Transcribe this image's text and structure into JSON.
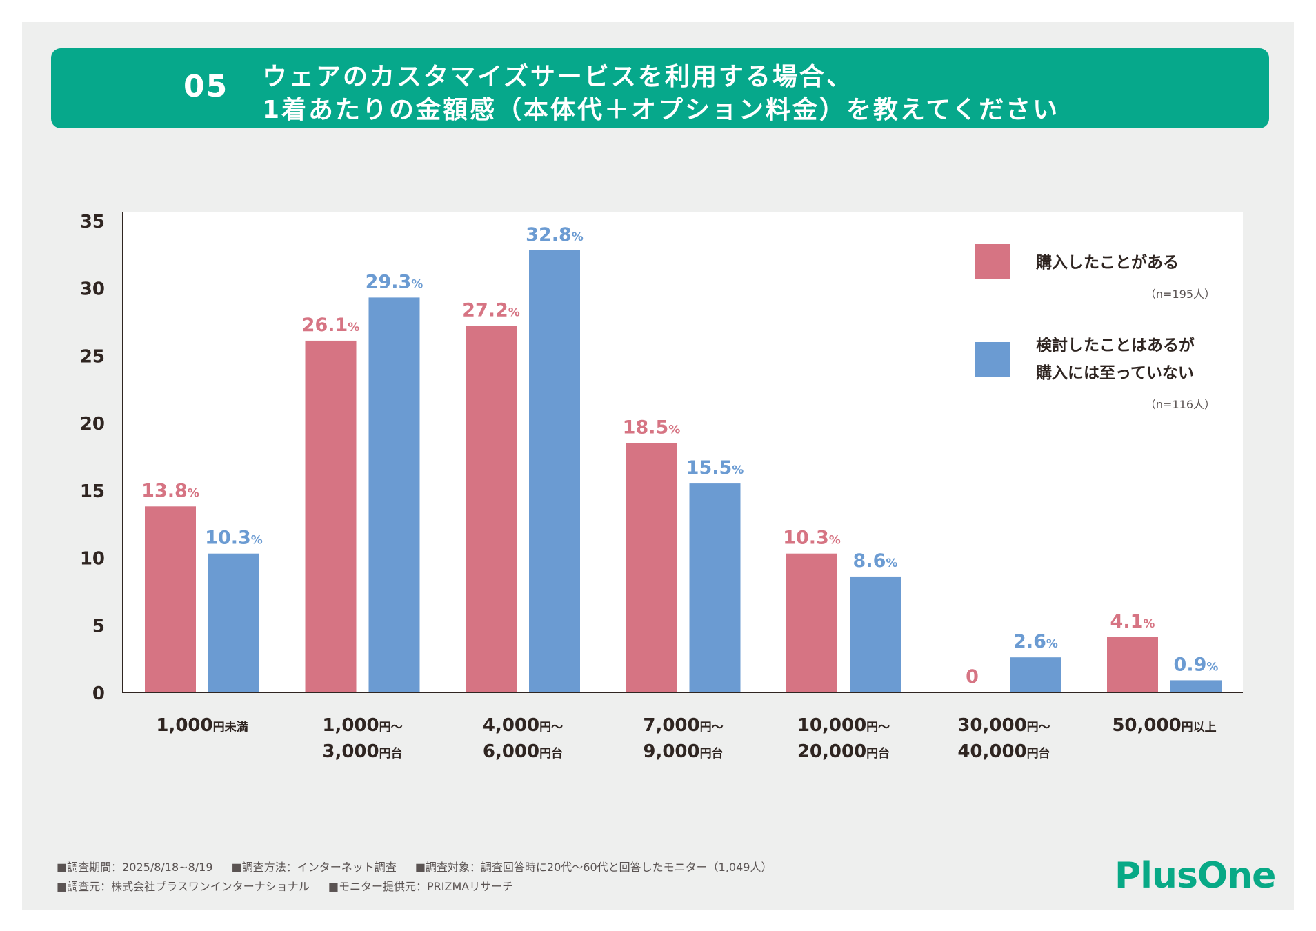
{
  "banner": {
    "number": "05",
    "title_line1": "ウェアのカスタマイズサービスを利用する場合、",
    "title_line2": "1着あたりの金額感（本体代＋オプション料金）を教えてください"
  },
  "colors": {
    "background": "#eeefee",
    "banner": "#06a88b",
    "series_purchased": "#d67483",
    "series_considered": "#6b9bd2",
    "text": "#2f2521",
    "logo": "#08a986"
  },
  "chart_data": {
    "type": "bar",
    "title": "",
    "xlabel": "",
    "ylabel": "",
    "ylim": [
      0,
      35
    ],
    "yticks": [
      0,
      5,
      10,
      15,
      20,
      25,
      30,
      35
    ],
    "grid": false,
    "legend_position": "top-right",
    "categories": [
      {
        "line1": "1,000",
        "unit1": "円未満",
        "line2": "",
        "unit2": ""
      },
      {
        "line1": "1,000",
        "unit1": "円～",
        "line2": "3,000",
        "unit2": "円台"
      },
      {
        "line1": "4,000",
        "unit1": "円～",
        "line2": "6,000",
        "unit2": "円台"
      },
      {
        "line1": "7,000",
        "unit1": "円～",
        "line2": "9,000",
        "unit2": "円台"
      },
      {
        "line1": "10,000",
        "unit1": "円～",
        "line2": "20,000",
        "unit2": "円台"
      },
      {
        "line1": "30,000",
        "unit1": "円～",
        "line2": "40,000",
        "unit2": "円台"
      },
      {
        "line1": "50,000",
        "unit1": "円以上",
        "line2": "",
        "unit2": ""
      }
    ],
    "series": [
      {
        "name": "購入したことがある",
        "name_lines": [
          "購入したことがある"
        ],
        "n_label": "（n=195人）",
        "values": [
          13.8,
          26.1,
          27.2,
          18.5,
          10.3,
          0,
          4.1
        ],
        "labels": [
          "13.8",
          "26.1",
          "27.2",
          "18.5",
          "10.3",
          "0",
          "4.1"
        ],
        "show_pct": [
          true,
          true,
          true,
          true,
          true,
          false,
          true
        ]
      },
      {
        "name": "検討したことはあるが購入には至っていない",
        "name_lines": [
          "検討したことはあるが",
          "購入には至っていない"
        ],
        "n_label": "（n=116人）",
        "values": [
          10.3,
          29.3,
          32.8,
          15.5,
          8.6,
          2.6,
          0.9
        ],
        "labels": [
          "10.3",
          "29.3",
          "32.8",
          "15.5",
          "8.6",
          "2.6",
          "0.9"
        ],
        "show_pct": [
          true,
          true,
          true,
          true,
          true,
          true,
          true
        ]
      }
    ],
    "pct_suffix": "%"
  },
  "footer": {
    "line1": [
      "■調査期間：2025/8/18~8/19",
      "■調査方法：インターネット調査",
      "■調査対象：調査回答時に20代～60代と回答したモニター（1,049人）"
    ],
    "line2": [
      "■調査元：株式会社プラスワンインターナショナル",
      "■モニター提供元：PRIZMAリサーチ"
    ]
  },
  "logo": {
    "text": "PlusOne"
  }
}
